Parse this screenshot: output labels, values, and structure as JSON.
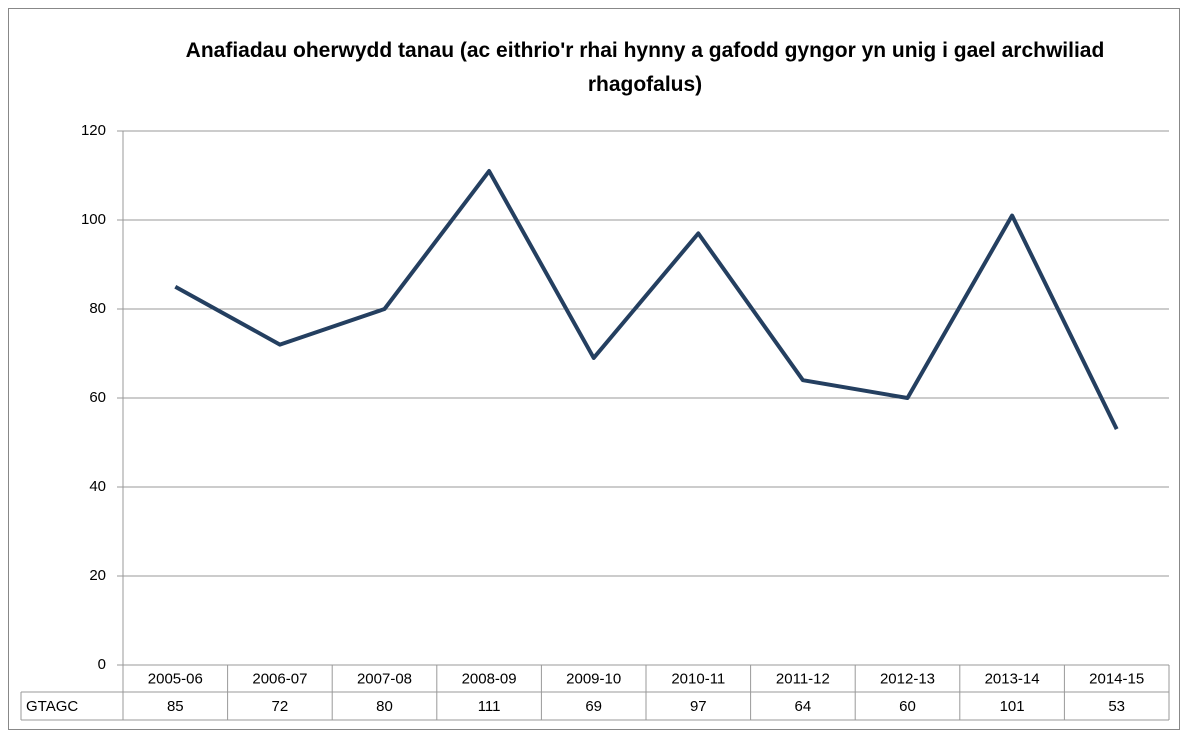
{
  "chart_data": {
    "type": "line",
    "title": "Anafiadau oherwydd tanau (ac eithrio'r rhai hynny a gafodd gyngor yn unig i gael archwiliad rhagofalus)",
    "categories": [
      "2005-06",
      "2006-07",
      "2007-08",
      "2008-09",
      "2009-10",
      "2010-11",
      "2011-12",
      "2012-13",
      "2013-14",
      "2014-15"
    ],
    "series": [
      {
        "name": "GTAGC",
        "color": "#243f60",
        "values": [
          85,
          72,
          80,
          111,
          69,
          97,
          64,
          60,
          101,
          53
        ]
      }
    ],
    "ylim": [
      0,
      120
    ],
    "yticks": [
      0,
      20,
      40,
      60,
      80,
      100,
      120
    ],
    "grid": true
  }
}
